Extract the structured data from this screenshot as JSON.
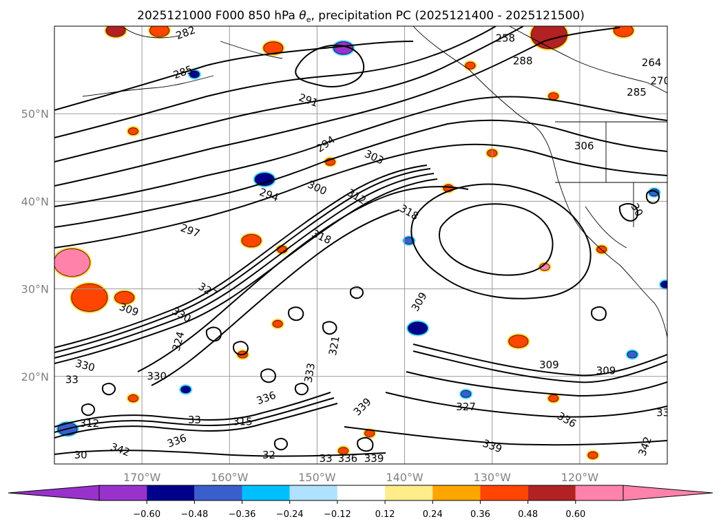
{
  "chart_data": {
    "type": "map",
    "title": "2025121000 F000 850 hPa θe, precipitation PC (2025121400 - 2025121500)",
    "title_parts": {
      "prefix": "2025121000 F000 850 hPa ",
      "symbol": "θ",
      "subscript": "e",
      "suffix": ", precipitation PC (2025121400 - 2025121500)"
    },
    "lon_range": [
      -180,
      -110
    ],
    "lat_range": [
      10,
      60
    ],
    "lon_ticks": [
      {
        "value": -170,
        "label": "170°W"
      },
      {
        "value": -160,
        "label": "160°W"
      },
      {
        "value": -150,
        "label": "150°W"
      },
      {
        "value": -140,
        "label": "140°W"
      },
      {
        "value": -130,
        "label": "130°W"
      },
      {
        "value": -120,
        "label": "120°W"
      }
    ],
    "lat_ticks": [
      {
        "value": 50,
        "label": "50°N"
      },
      {
        "value": 40,
        "label": "40°N"
      },
      {
        "value": 30,
        "label": "30°N"
      },
      {
        "value": 20,
        "label": "20°N"
      }
    ],
    "grid": true,
    "colorbar": {
      "orientation": "horizontal",
      "extend": "both",
      "levels": [
        -0.72,
        -0.6,
        -0.48,
        -0.36,
        -0.24,
        -0.12,
        0.12,
        0.24,
        0.36,
        0.48,
        0.6,
        0.72
      ],
      "tick_labels": [
        "−0.60",
        "−0.48",
        "−0.36",
        "−0.24",
        "−0.12",
        "0.12",
        "0.24",
        "0.36",
        "0.48",
        "0.60"
      ],
      "colors": [
        "#9932cc",
        "#00008b",
        "#3a5fcd",
        "#00bfff",
        "#b0e2ff",
        "#ffffff",
        "#ffec8b",
        "#ffa500",
        "#ff4500",
        "#b22222",
        "#ff82ab"
      ],
      "under_color": "#9932cc",
      "over_color": "#ff82ab"
    },
    "contour_labels": [
      {
        "text": "258",
        "lon": -128.5,
        "lat": 58.6,
        "angle": 0
      },
      {
        "text": "288",
        "lon": -126.5,
        "lat": 56.0,
        "angle": 0
      },
      {
        "text": "264",
        "lon": -111.8,
        "lat": 55.8,
        "angle": 0
      },
      {
        "text": "270",
        "lon": -110.8,
        "lat": 53.7,
        "angle": 0
      },
      {
        "text": "285",
        "lon": -113.5,
        "lat": 52.4,
        "angle": 0
      },
      {
        "text": "282",
        "lon": -165.0,
        "lat": 59.2,
        "angle": -20
      },
      {
        "text": "285",
        "lon": -165.3,
        "lat": 54.7,
        "angle": -20
      },
      {
        "text": "291",
        "lon": -151.0,
        "lat": 51.5,
        "angle": 20
      },
      {
        "text": "294",
        "lon": -149.0,
        "lat": 46.5,
        "angle": -35
      },
      {
        "text": "306",
        "lon": -119.5,
        "lat": 46.3,
        "angle": 0
      },
      {
        "text": "303",
        "lon": -143.5,
        "lat": 45.0,
        "angle": 25
      },
      {
        "text": "294",
        "lon": -155.5,
        "lat": 40.7,
        "angle": 20
      },
      {
        "text": "300",
        "lon": -150.0,
        "lat": 41.5,
        "angle": 25
      },
      {
        "text": "312",
        "lon": -145.5,
        "lat": 40.5,
        "angle": 30
      },
      {
        "text": "318",
        "lon": -139.5,
        "lat": 38.7,
        "angle": 30
      },
      {
        "text": "30",
        "lon": -113.5,
        "lat": 39.0,
        "angle": 60
      },
      {
        "text": "297",
        "lon": -164.5,
        "lat": 36.6,
        "angle": 20
      },
      {
        "text": "318",
        "lon": -149.5,
        "lat": 35.9,
        "angle": 25
      },
      {
        "text": "309",
        "lon": -171.5,
        "lat": 27.6,
        "angle": 20
      },
      {
        "text": "309",
        "lon": -138.3,
        "lat": 28.5,
        "angle": -60
      },
      {
        "text": "330",
        "lon": -165.5,
        "lat": 27.0,
        "angle": 30
      },
      {
        "text": "327",
        "lon": -162.5,
        "lat": 29.8,
        "angle": 30
      },
      {
        "text": "324",
        "lon": -165.8,
        "lat": 24.0,
        "angle": -75
      },
      {
        "text": "321",
        "lon": -148.0,
        "lat": 23.5,
        "angle": -80
      },
      {
        "text": "330",
        "lon": -176.5,
        "lat": 21.2,
        "angle": 15
      },
      {
        "text": "309",
        "lon": -123.5,
        "lat": 21.3,
        "angle": 0
      },
      {
        "text": "309",
        "lon": -117.0,
        "lat": 20.6,
        "angle": 0
      },
      {
        "text": "333",
        "lon": -150.8,
        "lat": 20.4,
        "angle": -80
      },
      {
        "text": "330",
        "lon": -168.3,
        "lat": 20.0,
        "angle": 0
      },
      {
        "text": "33",
        "lon": -178.0,
        "lat": 19.6,
        "angle": 0
      },
      {
        "text": "336",
        "lon": -155.8,
        "lat": 17.5,
        "angle": -20
      },
      {
        "text": "339",
        "lon": -144.8,
        "lat": 16.5,
        "angle": -45
      },
      {
        "text": "327",
        "lon": -133.0,
        "lat": 16.5,
        "angle": 0
      },
      {
        "text": "336",
        "lon": -121.5,
        "lat": 15.0,
        "angle": 30
      },
      {
        "text": "33",
        "lon": -110.5,
        "lat": 15.8,
        "angle": 0
      },
      {
        "text": "312",
        "lon": -176.0,
        "lat": 14.6,
        "angle": 0
      },
      {
        "text": "33",
        "lon": -164.0,
        "lat": 15.0,
        "angle": 0
      },
      {
        "text": "315",
        "lon": -158.5,
        "lat": 14.8,
        "angle": 0
      },
      {
        "text": "336",
        "lon": -166.0,
        "lat": 12.6,
        "angle": -20
      },
      {
        "text": "342",
        "lon": -172.5,
        "lat": 11.6,
        "angle": 20
      },
      {
        "text": "342",
        "lon": -112.5,
        "lat": 12.0,
        "angle": -70
      },
      {
        "text": "339",
        "lon": -130.0,
        "lat": 12.0,
        "angle": 20
      },
      {
        "text": "339",
        "lon": -143.5,
        "lat": 10.6,
        "angle": 0
      },
      {
        "text": "336",
        "lon": -146.5,
        "lat": 10.6,
        "angle": 0
      },
      {
        "text": "33",
        "lon": -149.0,
        "lat": 10.6,
        "angle": 0
      },
      {
        "text": "32",
        "lon": -155.5,
        "lat": 11.0,
        "angle": 0
      },
      {
        "text": "30",
        "lon": -177.0,
        "lat": 11.0,
        "angle": 0
      }
    ],
    "precip_patches": [
      {
        "lon": -178.0,
        "lat": 33.0,
        "category": "0.60",
        "size": "large"
      },
      {
        "lon": -176.0,
        "lat": 29.0,
        "category": "0.36",
        "size": "large"
      },
      {
        "lon": -172.0,
        "lat": 29.0,
        "category": "0.36",
        "size": "medium"
      },
      {
        "lon": -171.0,
        "lat": 48.0,
        "category": "0.36",
        "size": "small"
      },
      {
        "lon": -173.0,
        "lat": 59.5,
        "category": "0.48",
        "size": "medium"
      },
      {
        "lon": -168.0,
        "lat": 59.5,
        "category": "0.36",
        "size": "medium"
      },
      {
        "lon": -164.0,
        "lat": 54.5,
        "category": "-0.48",
        "size": "small"
      },
      {
        "lon": -155.0,
        "lat": 57.5,
        "category": "0.36",
        "size": "medium"
      },
      {
        "lon": -147.0,
        "lat": 57.5,
        "category": "-0.60",
        "size": "medium"
      },
      {
        "lon": -156.0,
        "lat": 42.5,
        "category": "-0.48",
        "size": "medium"
      },
      {
        "lon": -148.5,
        "lat": 44.5,
        "category": "0.36",
        "size": "small"
      },
      {
        "lon": -157.5,
        "lat": 35.5,
        "category": "0.36",
        "size": "medium"
      },
      {
        "lon": -154.0,
        "lat": 34.5,
        "category": "0.36",
        "size": "small"
      },
      {
        "lon": -123.5,
        "lat": 59.0,
        "category": "0.48",
        "size": "large"
      },
      {
        "lon": -115.0,
        "lat": 59.5,
        "category": "0.36",
        "size": "medium"
      },
      {
        "lon": -132.5,
        "lat": 55.5,
        "category": "0.36",
        "size": "small"
      },
      {
        "lon": -123.0,
        "lat": 52.0,
        "category": "0.36",
        "size": "small"
      },
      {
        "lon": -135.0,
        "lat": 41.5,
        "category": "0.36",
        "size": "small"
      },
      {
        "lon": -130.0,
        "lat": 45.5,
        "category": "0.36",
        "size": "small"
      },
      {
        "lon": -139.5,
        "lat": 35.5,
        "category": "-0.36",
        "size": "small"
      },
      {
        "lon": -138.5,
        "lat": 25.5,
        "category": "-0.48",
        "size": "medium"
      },
      {
        "lon": -127.0,
        "lat": 24.0,
        "category": "0.36",
        "size": "medium"
      },
      {
        "lon": -111.5,
        "lat": 41.0,
        "category": "-0.36",
        "size": "small"
      },
      {
        "lon": -110.2,
        "lat": 30.5,
        "category": "-0.48",
        "size": "small"
      },
      {
        "lon": -124.0,
        "lat": 32.5,
        "category": "0.60",
        "size": "small"
      },
      {
        "lon": -117.5,
        "lat": 34.5,
        "category": "0.36",
        "size": "small"
      },
      {
        "lon": -154.5,
        "lat": 26.0,
        "category": "0.36",
        "size": "small"
      },
      {
        "lon": -165.0,
        "lat": 18.5,
        "category": "-0.48",
        "size": "small"
      },
      {
        "lon": -171.0,
        "lat": 17.5,
        "category": "0.36",
        "size": "small"
      },
      {
        "lon": -178.5,
        "lat": 14.0,
        "category": "-0.36",
        "size": "medium"
      },
      {
        "lon": -123.0,
        "lat": 17.5,
        "category": "0.36",
        "size": "small"
      },
      {
        "lon": -144.0,
        "lat": 13.5,
        "category": "0.36",
        "size": "small"
      },
      {
        "lon": -133.0,
        "lat": 18.0,
        "category": "-0.36",
        "size": "small"
      },
      {
        "lon": -114.0,
        "lat": 22.5,
        "category": "-0.36",
        "size": "small"
      },
      {
        "lon": -158.5,
        "lat": 22.5,
        "category": "0.36",
        "size": "small"
      },
      {
        "lon": -147.0,
        "lat": 11.5,
        "category": "0.36",
        "size": "small"
      },
      {
        "lon": -118.5,
        "lat": 11.0,
        "category": "0.36",
        "size": "small"
      }
    ]
  }
}
